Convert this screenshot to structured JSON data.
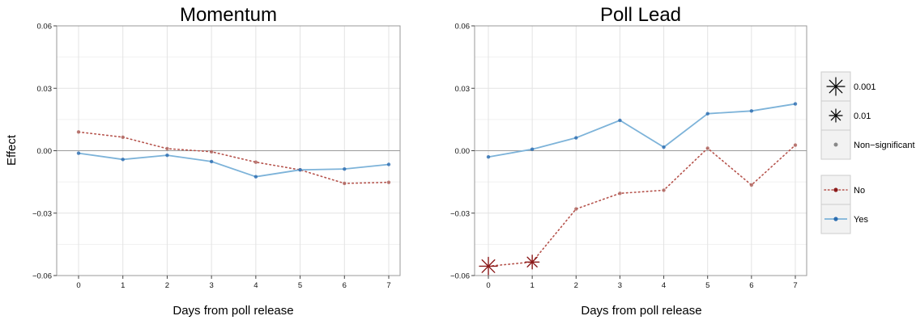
{
  "figure": {
    "shared_ylabel": "Effect"
  },
  "colors": {
    "no": "#b5524b",
    "no_marker": "#8b1a1a",
    "yes": "#7db3d9",
    "yes_marker": "#2b6cb0",
    "zero_line": "#9a9a9a",
    "grid": "#e3e3e3",
    "panel_border": "#999999"
  },
  "legend": {
    "significance": [
      {
        "label": "0.001",
        "icon": "large-asterisk-icon"
      },
      {
        "label": "0.01",
        "icon": "small-asterisk-icon"
      },
      {
        "label": "Non−significant",
        "icon": "dot-icon"
      }
    ],
    "groups": [
      {
        "label": "No",
        "icon": "dotted-line-red-dot-icon"
      },
      {
        "label": "Yes",
        "icon": "solid-line-blue-dot-icon"
      }
    ]
  },
  "chart_data": [
    {
      "type": "line",
      "title": "Momentum",
      "xlabel": "Days from poll release",
      "ylabel": "Effect",
      "x": [
        0,
        1,
        2,
        3,
        4,
        5,
        6,
        7
      ],
      "xticks": [
        "0",
        "1",
        "2",
        "3",
        "4",
        "5",
        "6",
        "7"
      ],
      "yticks": [
        "0.06",
        "0.03",
        "0.00",
        "−0.03",
        "−0.06"
      ],
      "ytick_values": [
        0.06,
        0.03,
        0.0,
        -0.03,
        -0.06
      ],
      "ylim": [
        -0.06,
        0.06
      ],
      "grid": true,
      "series": [
        {
          "name": "No",
          "style": "dotted",
          "color_key": "no",
          "values": [
            0.009,
            0.0065,
            0.001,
            -0.0005,
            -0.0055,
            -0.0092,
            -0.0157,
            -0.0152
          ],
          "significance": [
            "ns",
            "ns",
            "ns",
            "ns",
            "ns",
            "ns",
            "ns",
            "ns"
          ]
        },
        {
          "name": "Yes",
          "style": "solid",
          "color_key": "yes",
          "values": [
            -0.0012,
            -0.0042,
            -0.0022,
            -0.0052,
            -0.0125,
            -0.0092,
            -0.0088,
            -0.0066
          ],
          "significance": [
            "ns",
            "ns",
            "ns",
            "ns",
            "ns",
            "ns",
            "ns",
            "ns"
          ]
        }
      ]
    },
    {
      "type": "line",
      "title": "Poll Lead",
      "xlabel": "Days from poll release",
      "ylabel": "",
      "x": [
        0,
        1,
        2,
        3,
        4,
        5,
        6,
        7
      ],
      "xticks": [
        "0",
        "1",
        "2",
        "3",
        "4",
        "5",
        "6",
        "7"
      ],
      "yticks": [
        "0.06",
        "0.03",
        "0.00",
        "−0.03",
        "−0.06"
      ],
      "ytick_values": [
        0.06,
        0.03,
        0.0,
        -0.03,
        -0.06
      ],
      "ylim": [
        -0.06,
        0.06
      ],
      "grid": true,
      "series": [
        {
          "name": "No",
          "style": "dotted",
          "color_key": "no",
          "values": [
            -0.0555,
            -0.0535,
            -0.028,
            -0.0205,
            -0.019,
            0.0012,
            -0.0165,
            0.0027
          ],
          "significance": [
            "0.001",
            "0.01",
            "ns",
            "ns",
            "ns",
            "ns",
            "ns",
            "ns"
          ]
        },
        {
          "name": "Yes",
          "style": "solid",
          "color_key": "yes",
          "values": [
            -0.003,
            0.0007,
            0.0062,
            0.0146,
            0.0017,
            0.0178,
            0.0191,
            0.0225
          ],
          "significance": [
            "ns",
            "ns",
            "ns",
            "ns",
            "ns",
            "ns",
            "ns",
            "ns"
          ]
        }
      ]
    }
  ]
}
